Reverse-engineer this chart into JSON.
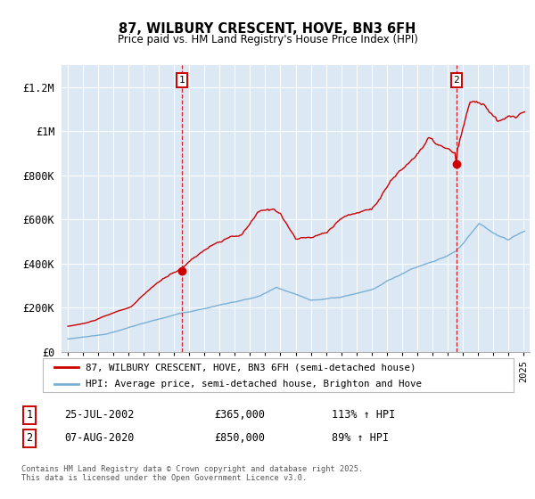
{
  "title": "87, WILBURY CRESCENT, HOVE, BN3 6FH",
  "subtitle": "Price paid vs. HM Land Registry's House Price Index (HPI)",
  "plot_bg_color": "#dce9f5",
  "red_line_color": "#cc0000",
  "blue_line_color": "#7bafd4",
  "legend1": "87, WILBURY CRESCENT, HOVE, BN3 6FH (semi-detached house)",
  "legend2": "HPI: Average price, semi-detached house, Brighton and Hove",
  "footer": "Contains HM Land Registry data © Crown copyright and database right 2025.\nThis data is licensed under the Open Government Licence v3.0.",
  "ylabel_ticks": [
    "£0",
    "£200K",
    "£400K",
    "£600K",
    "£800K",
    "£1M",
    "£1.2M"
  ],
  "ylabel_values": [
    0,
    200000,
    400000,
    600000,
    800000,
    1000000,
    1200000
  ],
  "ylim": [
    0,
    1300000
  ],
  "marker1_idx": 90,
  "marker1_price": 365000,
  "marker2_idx": 307,
  "marker2_price": 850000,
  "n_months": 362,
  "red_key_x": [
    0,
    15,
    30,
    50,
    70,
    90,
    105,
    120,
    138,
    150,
    162,
    168,
    180,
    192,
    204,
    216,
    228,
    240,
    255,
    270,
    285,
    307,
    318,
    330,
    340,
    348,
    361
  ],
  "red_key_y": [
    115000,
    130000,
    160000,
    200000,
    300000,
    365000,
    440000,
    490000,
    510000,
    600000,
    610000,
    600000,
    490000,
    490000,
    510000,
    580000,
    600000,
    620000,
    750000,
    830000,
    930000,
    850000,
    1060000,
    1050000,
    970000,
    980000,
    1000000
  ],
  "blue_key_x": [
    0,
    30,
    60,
    90,
    120,
    150,
    165,
    192,
    216,
    240,
    270,
    307,
    325,
    340,
    348,
    361
  ],
  "blue_key_y": [
    58000,
    80000,
    130000,
    175000,
    215000,
    250000,
    290000,
    230000,
    245000,
    280000,
    370000,
    449000,
    560000,
    510000,
    490000,
    530000
  ]
}
